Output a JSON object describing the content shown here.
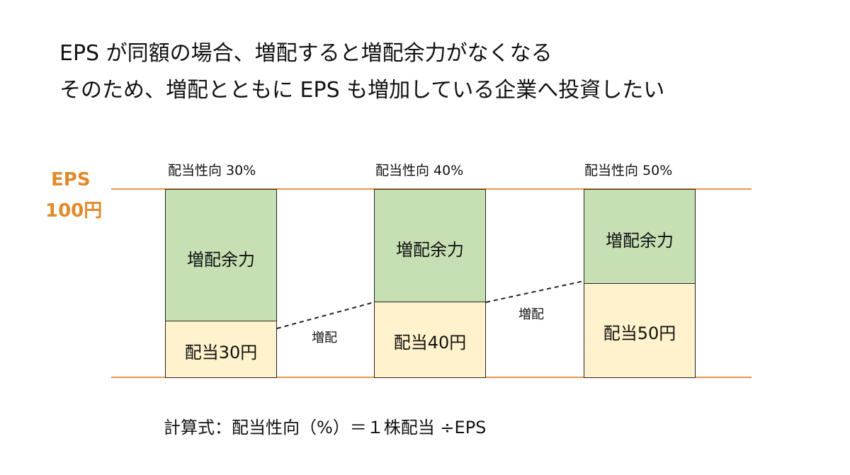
{
  "title": {
    "line1": "EPS が同額の場合、増配すると増配余力がなくなる",
    "line2": "そのため、増配とともに EPS も増加している企業へ投資したい"
  },
  "eps": {
    "label": "EPS",
    "value": "100円",
    "color": "#e08a2c"
  },
  "colors": {
    "headroom": "#c6e0b4",
    "dividend": "#fff2cc",
    "baseline": "#e8964a"
  },
  "chart_data": {
    "type": "bar",
    "stacked": true,
    "total": 100,
    "categories": [
      "配当性向 30%",
      "配当性向 40%",
      "配当性向 50%"
    ],
    "series": [
      {
        "name": "配当",
        "values": [
          30,
          40,
          50
        ],
        "labels": [
          "配当30円",
          "配当40円",
          "配当50円"
        ]
      },
      {
        "name": "増配余力",
        "values": [
          70,
          60,
          50
        ],
        "labels": [
          "増配余力",
          "増配余力",
          "増配余力"
        ]
      }
    ],
    "annotations": [
      "増配",
      "増配"
    ]
  },
  "formula": "計算式：配当性向（%）＝１株配当 ÷EPS"
}
